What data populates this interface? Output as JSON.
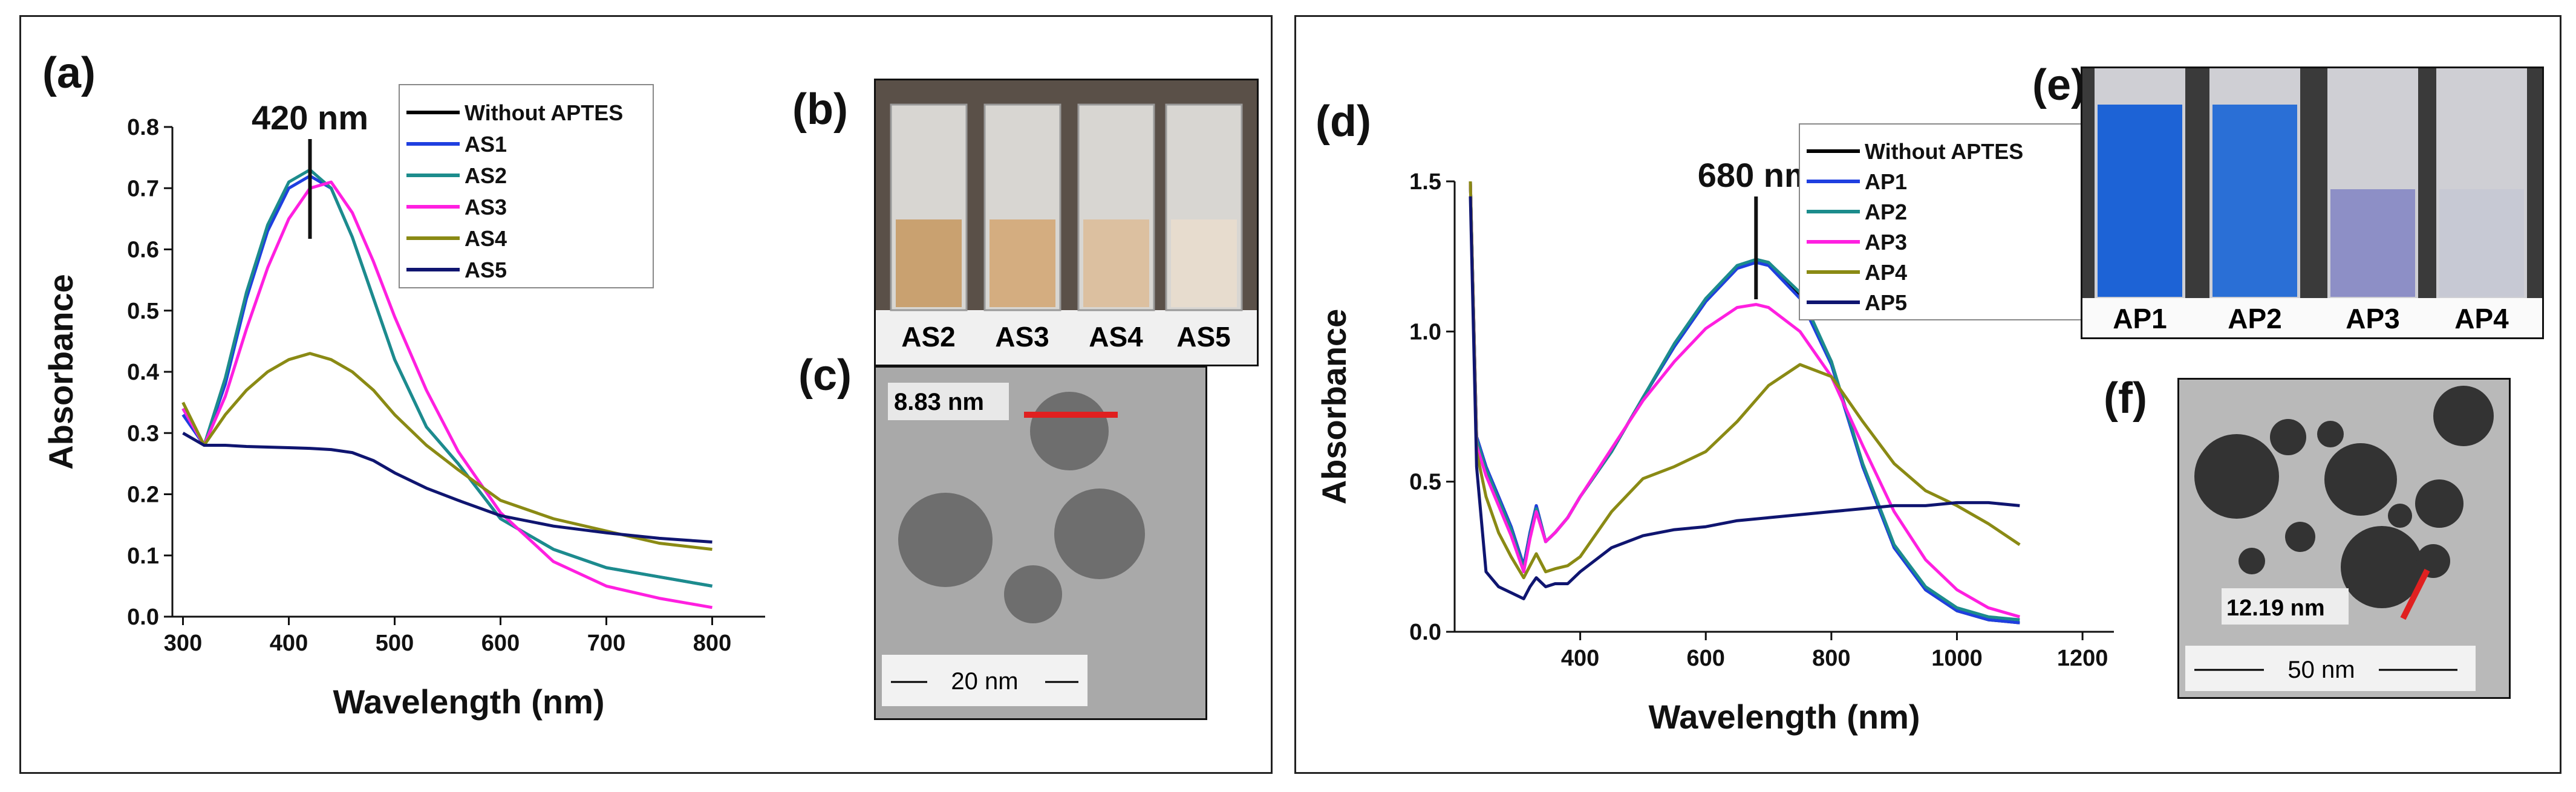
{
  "panel_labels": {
    "a": "(a)",
    "b": "(b)",
    "c": "(c)",
    "d": "(d)",
    "e": "(e)",
    "f": "(f)"
  },
  "chart_data": [
    {
      "type": "line",
      "xlabel": "Wavelength (nm)",
      "ylabel": "Absorbance",
      "xlim": [
        290,
        850
      ],
      "ylim": [
        0,
        0.8
      ],
      "xticks": [
        300,
        400,
        500,
        600,
        700,
        800
      ],
      "yticks": [
        0.0,
        0.1,
        0.2,
        0.3,
        0.4,
        0.5,
        0.6,
        0.7,
        0.8
      ],
      "annotation": {
        "text": "420 nm",
        "x": 420
      },
      "legend_position": "top-right",
      "series": [
        {
          "name": "Without APTES",
          "color": "#000000",
          "x": [],
          "y": []
        },
        {
          "name": "AS1",
          "color": "#1f3fe0",
          "x": [
            300,
            320,
            340,
            360,
            380,
            400,
            420,
            440,
            460,
            480,
            500,
            530,
            560,
            600,
            650,
            700,
            750,
            800
          ],
          "y": [
            0.33,
            0.28,
            0.38,
            0.52,
            0.63,
            0.7,
            0.72,
            0.7,
            0.62,
            0.52,
            0.42,
            0.31,
            0.25,
            0.16,
            0.11,
            0.08,
            0.065,
            0.05
          ]
        },
        {
          "name": "AS2",
          "color": "#1c8c8c",
          "x": [
            300,
            320,
            340,
            360,
            380,
            400,
            420,
            440,
            460,
            480,
            500,
            530,
            560,
            600,
            650,
            700,
            750,
            800
          ],
          "y": [
            0.34,
            0.28,
            0.39,
            0.53,
            0.64,
            0.71,
            0.73,
            0.7,
            0.62,
            0.52,
            0.42,
            0.31,
            0.25,
            0.16,
            0.11,
            0.08,
            0.065,
            0.05
          ]
        },
        {
          "name": "AS3",
          "color": "#ff1fe0",
          "x": [
            300,
            320,
            340,
            360,
            380,
            400,
            420,
            440,
            460,
            480,
            500,
            530,
            560,
            600,
            650,
            700,
            750,
            800
          ],
          "y": [
            0.34,
            0.28,
            0.36,
            0.47,
            0.57,
            0.65,
            0.7,
            0.71,
            0.66,
            0.58,
            0.49,
            0.37,
            0.27,
            0.17,
            0.09,
            0.05,
            0.03,
            0.015
          ]
        },
        {
          "name": "AS4",
          "color": "#8a8a14",
          "x": [
            300,
            320,
            340,
            360,
            380,
            400,
            420,
            440,
            460,
            480,
            500,
            530,
            560,
            600,
            650,
            700,
            750,
            800
          ],
          "y": [
            0.35,
            0.28,
            0.33,
            0.37,
            0.4,
            0.42,
            0.43,
            0.42,
            0.4,
            0.37,
            0.33,
            0.28,
            0.24,
            0.19,
            0.16,
            0.14,
            0.12,
            0.11
          ]
        },
        {
          "name": "AS5",
          "color": "#0f1570",
          "x": [
            300,
            320,
            340,
            360,
            380,
            400,
            420,
            440,
            460,
            480,
            500,
            530,
            560,
            600,
            650,
            700,
            750,
            800
          ],
          "y": [
            0.3,
            0.28,
            0.28,
            0.278,
            0.277,
            0.276,
            0.275,
            0.273,
            0.268,
            0.255,
            0.235,
            0.21,
            0.19,
            0.165,
            0.148,
            0.137,
            0.128,
            0.122
          ]
        }
      ]
    },
    {
      "type": "line",
      "xlabel": "Wavelength (nm)",
      "ylabel": "Absorbance",
      "xlim": [
        200,
        1250
      ],
      "ylim": [
        0,
        1.5
      ],
      "xticks": [
        400,
        600,
        800,
        1000,
        1200
      ],
      "yticks": [
        0.0,
        0.5,
        1.0,
        1.5
      ],
      "annotation": {
        "text": "680 nm",
        "x": 680
      },
      "legend_position": "top-right",
      "series": [
        {
          "name": "Without APTES",
          "color": "#000000",
          "x": [
            225,
            235,
            250,
            270,
            290,
            310,
            320,
            330,
            345,
            360,
            380,
            400,
            450,
            500,
            550,
            600,
            650,
            680,
            700,
            750,
            800,
            850,
            900,
            950,
            1000,
            1050,
            1100
          ],
          "y": [
            1.5,
            0.65,
            0.55,
            0.45,
            0.35,
            0.22,
            0.33,
            0.42,
            0.3,
            0.33,
            0.38,
            0.45,
            0.6,
            0.78,
            0.95,
            1.1,
            1.21,
            1.24,
            1.23,
            1.12,
            0.9,
            0.55,
            0.28,
            0.14,
            0.07,
            0.04,
            0.03
          ]
        },
        {
          "name": "AP1",
          "color": "#1f3fe0",
          "x": [
            225,
            235,
            250,
            270,
            290,
            310,
            320,
            330,
            345,
            360,
            380,
            400,
            450,
            500,
            550,
            600,
            650,
            680,
            700,
            750,
            800,
            850,
            900,
            950,
            1000,
            1050,
            1100
          ],
          "y": [
            1.5,
            0.65,
            0.55,
            0.45,
            0.35,
            0.22,
            0.33,
            0.42,
            0.3,
            0.33,
            0.38,
            0.45,
            0.6,
            0.78,
            0.95,
            1.1,
            1.21,
            1.23,
            1.22,
            1.11,
            0.89,
            0.55,
            0.28,
            0.14,
            0.07,
            0.04,
            0.03
          ]
        },
        {
          "name": "AP2",
          "color": "#1c8c8c",
          "x": [
            225,
            235,
            250,
            270,
            290,
            310,
            320,
            330,
            345,
            360,
            380,
            400,
            450,
            500,
            550,
            600,
            650,
            680,
            700,
            750,
            800,
            850,
            900,
            950,
            1000,
            1050,
            1100
          ],
          "y": [
            1.5,
            0.64,
            0.54,
            0.44,
            0.34,
            0.21,
            0.32,
            0.41,
            0.3,
            0.33,
            0.38,
            0.45,
            0.6,
            0.78,
            0.96,
            1.11,
            1.22,
            1.24,
            1.23,
            1.13,
            0.9,
            0.56,
            0.29,
            0.15,
            0.08,
            0.05,
            0.04
          ]
        },
        {
          "name": "AP3",
          "color": "#ff1fe0",
          "x": [
            225,
            235,
            250,
            270,
            290,
            310,
            320,
            330,
            345,
            360,
            380,
            400,
            450,
            500,
            550,
            600,
            650,
            680,
            700,
            750,
            800,
            850,
            900,
            950,
            1000,
            1050,
            1100
          ],
          "y": [
            1.5,
            0.62,
            0.52,
            0.42,
            0.32,
            0.2,
            0.31,
            0.4,
            0.3,
            0.33,
            0.38,
            0.45,
            0.61,
            0.77,
            0.9,
            1.01,
            1.08,
            1.09,
            1.08,
            1.0,
            0.85,
            0.62,
            0.4,
            0.24,
            0.14,
            0.08,
            0.05
          ]
        },
        {
          "name": "AP4",
          "color": "#8a8a14",
          "x": [
            225,
            235,
            250,
            270,
            290,
            310,
            320,
            330,
            345,
            360,
            380,
            400,
            450,
            500,
            550,
            600,
            650,
            700,
            750,
            800,
            850,
            900,
            950,
            1000,
            1050,
            1100
          ],
          "y": [
            1.5,
            0.6,
            0.45,
            0.33,
            0.25,
            0.18,
            0.22,
            0.26,
            0.2,
            0.21,
            0.22,
            0.25,
            0.4,
            0.51,
            0.55,
            0.6,
            0.7,
            0.82,
            0.89,
            0.85,
            0.7,
            0.56,
            0.47,
            0.42,
            0.36,
            0.29
          ]
        },
        {
          "name": "AP5",
          "color": "#0f1570",
          "x": [
            225,
            235,
            250,
            270,
            290,
            310,
            320,
            330,
            345,
            360,
            380,
            400,
            450,
            500,
            550,
            600,
            650,
            700,
            750,
            800,
            850,
            900,
            950,
            1000,
            1050,
            1100
          ],
          "y": [
            1.45,
            0.55,
            0.2,
            0.15,
            0.13,
            0.11,
            0.15,
            0.18,
            0.15,
            0.16,
            0.16,
            0.2,
            0.28,
            0.32,
            0.34,
            0.35,
            0.37,
            0.38,
            0.39,
            0.4,
            0.41,
            0.42,
            0.42,
            0.43,
            0.43,
            0.42
          ]
        }
      ]
    }
  ],
  "panel_b": {
    "labels": [
      "AS2",
      "AS3",
      "AS4",
      "AS5"
    ],
    "liquid_colors": [
      "#c9a170",
      "#d4ad80",
      "#dcc0a0",
      "#e7dcce"
    ]
  },
  "panel_c": {
    "measure_label": "8.83 nm",
    "scale_label": "20 nm"
  },
  "panel_e": {
    "labels": [
      "AP1",
      "AP2",
      "AP3",
      "AP4"
    ],
    "liquid_colors": [
      "#1d63d6",
      "#2a6fd6",
      "#8d8fc6",
      "#c7c9d4"
    ]
  },
  "panel_f": {
    "measure_label": "12.19 nm",
    "scale_label": "50 nm"
  }
}
